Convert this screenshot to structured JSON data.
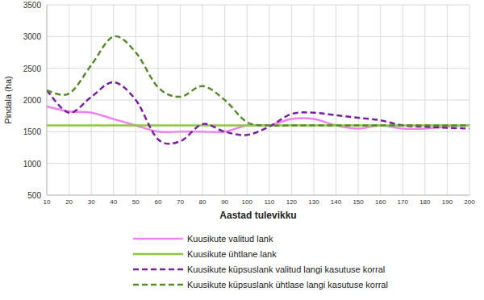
{
  "chart_data": {
    "type": "line",
    "x_label": "Aastad tulevikku",
    "y_label": "Pindala (ha)",
    "x": [
      10,
      20,
      30,
      40,
      50,
      60,
      70,
      80,
      90,
      100,
      110,
      120,
      130,
      140,
      150,
      160,
      170,
      180,
      190,
      200
    ],
    "xlim": [
      10,
      200
    ],
    "xticks": [
      10,
      20,
      30,
      40,
      50,
      60,
      70,
      80,
      90,
      100,
      110,
      120,
      130,
      140,
      150,
      160,
      170,
      180,
      190,
      200
    ],
    "ylim": [
      500,
      3500
    ],
    "yticks": [
      500,
      1000,
      1500,
      2000,
      2500,
      3000,
      3500
    ],
    "grid": true,
    "legend": "bottom",
    "series": [
      {
        "name": "Kuusikute valitud lank",
        "color": "#ee82ee",
        "line_style": "solid",
        "values": [
          1900,
          1820,
          1800,
          1700,
          1600,
          1500,
          1500,
          1500,
          1500,
          1600,
          1600,
          1700,
          1700,
          1600,
          1550,
          1600,
          1550,
          1550,
          1580,
          1600
        ]
      },
      {
        "name": "Kuusikute ühtlane lank",
        "color": "#8dc63f",
        "line_style": "solid",
        "values": [
          1600,
          1600,
          1600,
          1600,
          1600,
          1600,
          1600,
          1600,
          1600,
          1600,
          1600,
          1600,
          1600,
          1600,
          1600,
          1600,
          1600,
          1600,
          1600,
          1600
        ]
      },
      {
        "name": "Kuusikute küpsuslank valitud langi kasutuse korral",
        "color": "#7b1fa2",
        "line_style": "dashed",
        "values": [
          2150,
          1800,
          2050,
          2280,
          2000,
          1380,
          1350,
          1620,
          1500,
          1450,
          1580,
          1780,
          1800,
          1760,
          1720,
          1680,
          1600,
          1580,
          1560,
          1550
        ]
      },
      {
        "name": "Kuusikute küpsuslank ühtlase langi kasutuse korral",
        "color": "#558b2f",
        "line_style": "dashed",
        "values": [
          2150,
          2100,
          2550,
          3000,
          2750,
          2200,
          2050,
          2220,
          2000,
          1650,
          1600,
          1600,
          1600,
          1600,
          1600,
          1600,
          1600,
          1600,
          1600,
          1600
        ]
      }
    ]
  }
}
